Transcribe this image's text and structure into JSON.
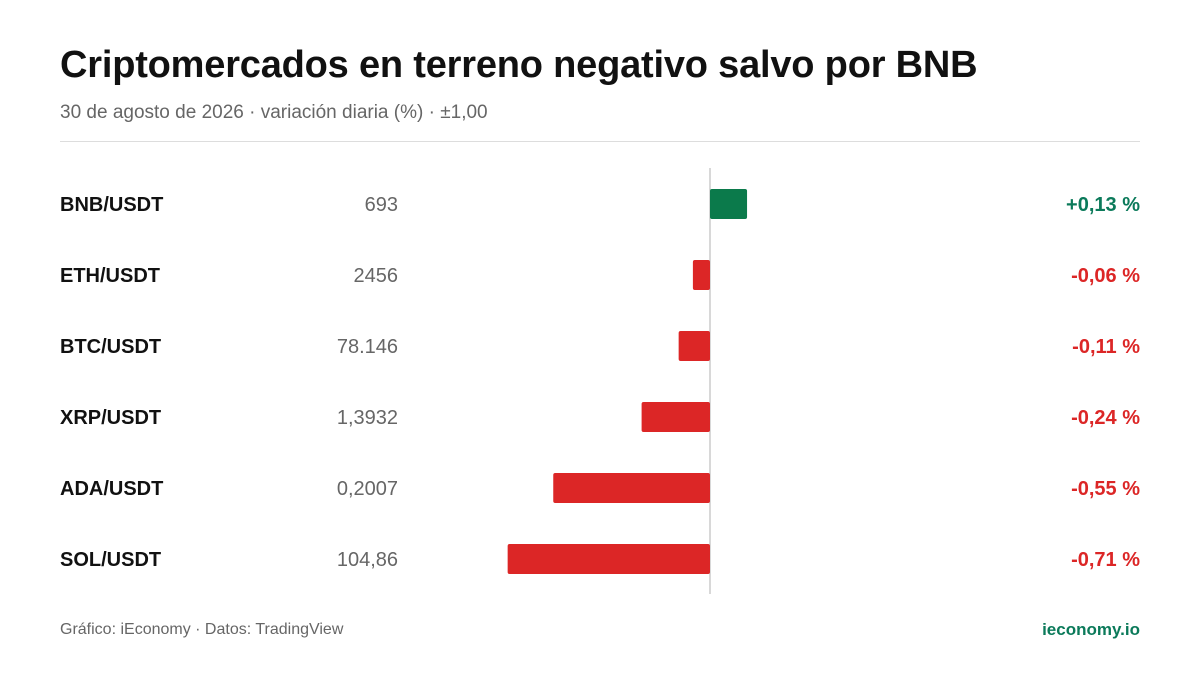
{
  "header": {
    "title": "Criptomercados en terreno negativo salvo por BNB",
    "subtitle": "30 de agosto de 2026 · variación diaria (%) · ±1,00"
  },
  "footer": {
    "credit": "Gráfico: iEconomy · Datos: TradingView",
    "brand": "ieconomy.io"
  },
  "colors": {
    "positive": "#0b7a4b",
    "negative": "#dc2626",
    "positive_text": "#0b7a5a",
    "negative_text": "#dc2626"
  },
  "chart_data": {
    "type": "bar",
    "orientation": "horizontal",
    "xlim": [
      -1.0,
      1.0
    ],
    "categories": [
      "BNB/USDT",
      "ETH/USDT",
      "BTC/USDT",
      "XRP/USDT",
      "ADA/USDT",
      "SOL/USDT"
    ],
    "prices": [
      "693",
      "2456",
      "78.146",
      "1,3932",
      "0,2007",
      "104,86"
    ],
    "values": [
      0.13,
      -0.06,
      -0.11,
      -0.24,
      -0.55,
      -0.71
    ],
    "value_labels": [
      "+0,13 %",
      "-0,06 %",
      "-0,11 %",
      "-0,24 %",
      "-0,55 %",
      "-0,71 %"
    ],
    "grid": false
  }
}
